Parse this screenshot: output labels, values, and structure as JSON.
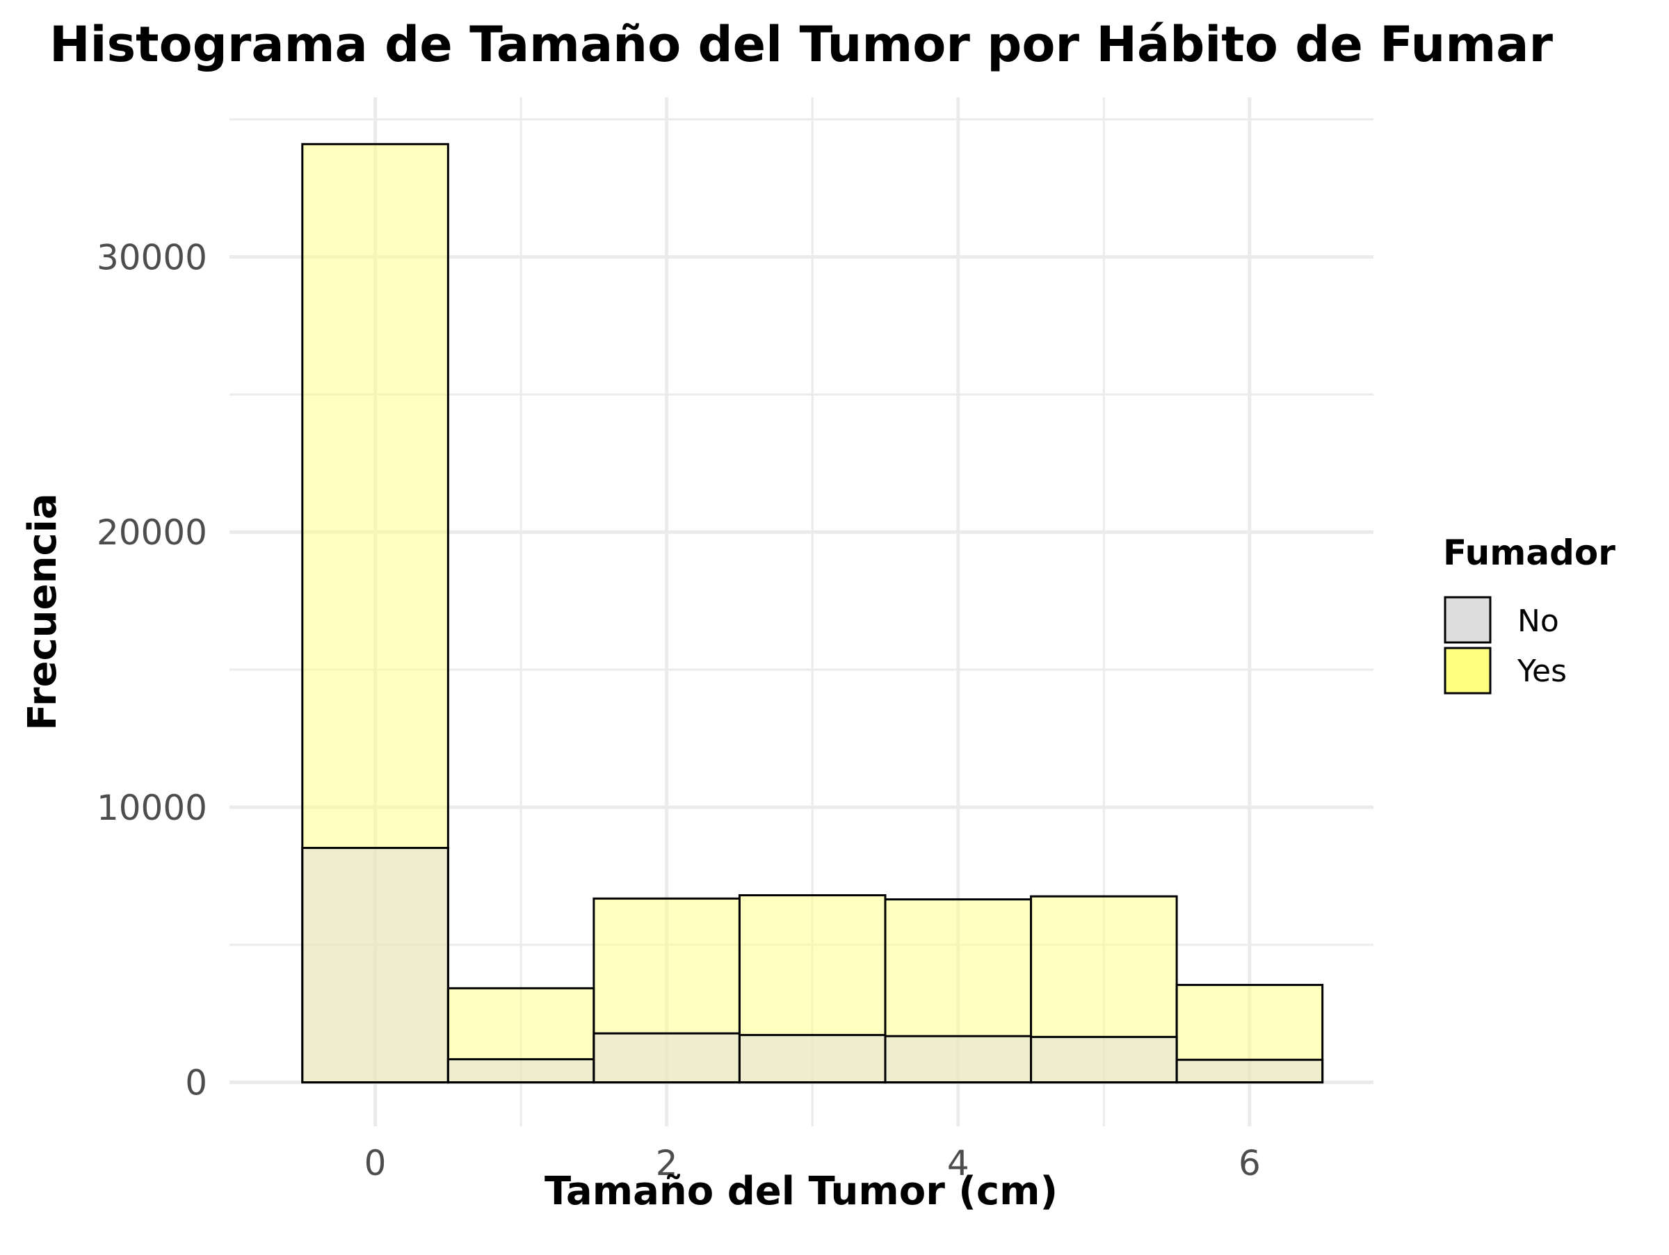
{
  "chart_data": {
    "type": "bar",
    "title": "Histograma de Tamaño del Tumor por Hábito de Fumar",
    "xlabel": "Tamaño del Tumor (cm)",
    "ylabel": "Frecuencia",
    "bins": [
      0,
      1,
      2,
      3,
      4,
      5,
      6
    ],
    "bin_width": 1,
    "series": [
      {
        "name": "Yes",
        "color": "#ffff80",
        "values": [
          34100,
          3420,
          6680,
          6800,
          6650,
          6760,
          3540
        ]
      },
      {
        "name": "No",
        "color": "#dddddd",
        "values": [
          8520,
          840,
          1780,
          1720,
          1680,
          1650,
          820
        ]
      }
    ],
    "xlim": [
      -1.0,
      6.85
    ],
    "ylim": [
      -1600,
      35800
    ],
    "xticks": [
      0,
      2,
      4,
      6
    ],
    "xtick_labels": [
      "0",
      "2",
      "4",
      "6"
    ],
    "yticks": [
      0,
      10000,
      20000,
      30000
    ],
    "ytick_labels": [
      "0",
      "10000",
      "20000",
      "30000"
    ],
    "grid": true,
    "legend": {
      "title": "Fumador",
      "placement": "right",
      "entries": [
        {
          "label": "No",
          "color": "#dddddd"
        },
        {
          "label": "Yes",
          "color": "#ffff80"
        }
      ]
    }
  }
}
